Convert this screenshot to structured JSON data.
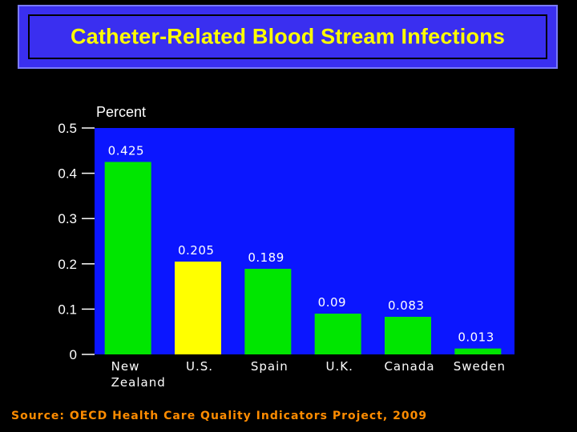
{
  "colors": {
    "background": "#000000",
    "plot_background": "#0b16ff",
    "title_box": "#3a2ff0",
    "title_text": "#ffff00",
    "bar_default": "#00e600",
    "bar_highlight": "#ffff00",
    "source_text": "#ff8c00"
  },
  "chart_data": {
    "type": "bar",
    "title": "Catheter-Related Blood Stream Infections",
    "ylabel": "Percent",
    "xlabel": "",
    "ylim": [
      0,
      0.5
    ],
    "yticks": [
      {
        "value": 0,
        "label": "0"
      },
      {
        "value": 0.1,
        "label": "0.1"
      },
      {
        "value": 0.2,
        "label": "0.2"
      },
      {
        "value": 0.3,
        "label": "0.3"
      },
      {
        "value": 0.4,
        "label": "0.4"
      },
      {
        "value": 0.5,
        "label": "0.5"
      }
    ],
    "categories": [
      [
        "New",
        "Zealand"
      ],
      [
        "U.S."
      ],
      [
        "Spain"
      ],
      [
        "U.K."
      ],
      [
        "Canada"
      ],
      [
        "Sweden"
      ]
    ],
    "values": [
      0.425,
      0.205,
      0.189,
      0.09,
      0.083,
      0.013
    ],
    "value_labels": [
      "0.425",
      "0.205",
      "0.189",
      "0.09",
      "0.083",
      "0.013"
    ],
    "highlight_index": 1,
    "grid": false
  },
  "footer": {
    "source": "Source: OECD Health Care Quality Indicators Project, 2009"
  }
}
